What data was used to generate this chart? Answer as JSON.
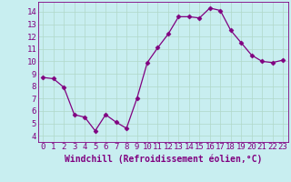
{
  "x": [
    0,
    1,
    2,
    3,
    4,
    5,
    6,
    7,
    8,
    9,
    10,
    11,
    12,
    13,
    14,
    15,
    16,
    17,
    18,
    19,
    20,
    21,
    22,
    23
  ],
  "y": [
    8.7,
    8.6,
    7.9,
    5.7,
    5.5,
    4.4,
    5.7,
    5.1,
    4.6,
    7.0,
    9.9,
    11.1,
    12.2,
    13.6,
    13.6,
    13.5,
    14.3,
    14.1,
    12.5,
    11.5,
    10.5,
    10.0,
    9.9,
    10.1
  ],
  "line_color": "#800080",
  "marker": "D",
  "markersize": 2.5,
  "linewidth": 0.9,
  "background_color": "#c8eef0",
  "grid_color": "#b0d8c8",
  "xlabel": "Windchill (Refroidissement éolien,°C)",
  "xlabel_fontsize": 7,
  "tick_fontsize": 6.5,
  "xlim": [
    -0.5,
    23.5
  ],
  "ylim": [
    3.5,
    14.8
  ],
  "yticks": [
    4,
    5,
    6,
    7,
    8,
    9,
    10,
    11,
    12,
    13,
    14
  ],
  "xticks": [
    0,
    1,
    2,
    3,
    4,
    5,
    6,
    7,
    8,
    9,
    10,
    11,
    12,
    13,
    14,
    15,
    16,
    17,
    18,
    19,
    20,
    21,
    22,
    23
  ]
}
